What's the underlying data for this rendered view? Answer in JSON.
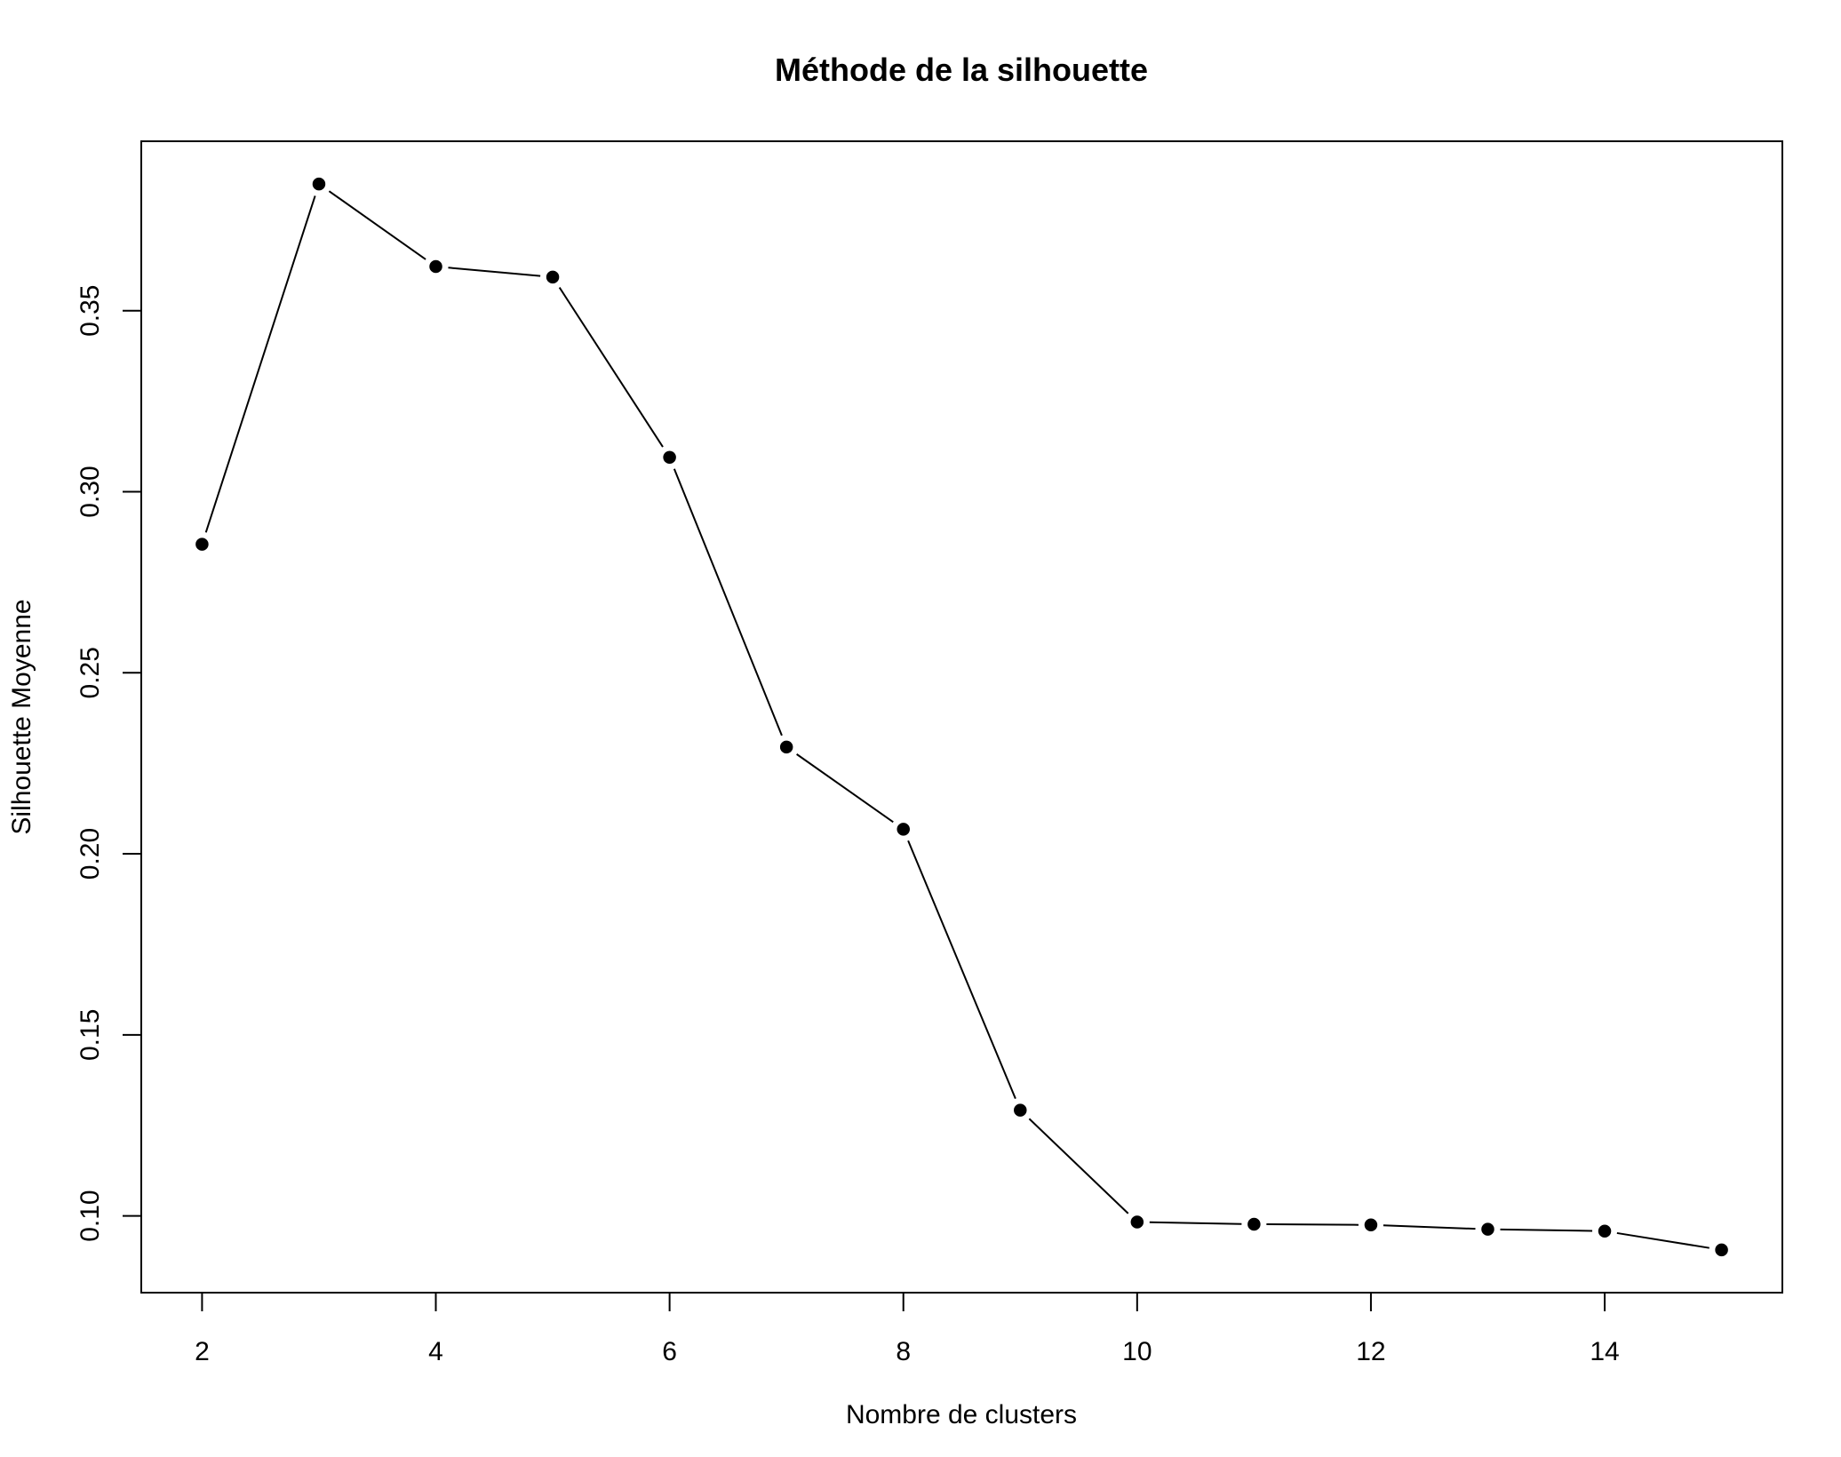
{
  "chart_data": {
    "type": "line",
    "title": "Méthode de la silhouette",
    "xlabel": "Nombre de clusters",
    "ylabel": "Silhouette Moyenne",
    "x": [
      2,
      3,
      4,
      5,
      6,
      7,
      8,
      9,
      10,
      11,
      12,
      13,
      14,
      15
    ],
    "series": [
      {
        "values": [
          0.2855,
          0.385,
          0.3622,
          0.3593,
          0.3095,
          0.2295,
          0.2068,
          0.1292,
          0.0983,
          0.0977,
          0.0975,
          0.0963,
          0.0958,
          0.0906
        ],
        "line_style": "solid with points",
        "marker": "filled-circle",
        "color": "#000000"
      }
    ],
    "xticks": [
      2,
      4,
      6,
      8,
      10,
      12,
      14
    ],
    "xtick_labels": [
      "2",
      "4",
      "6",
      "8",
      "10",
      "12",
      "14"
    ],
    "yticks": [
      0.1,
      0.15,
      0.2,
      0.25,
      0.3,
      0.35
    ],
    "ytick_labels": [
      "0.10",
      "0.15",
      "0.20",
      "0.25",
      "0.30",
      "0.35"
    ],
    "xlim": [
      1.48,
      15.52
    ],
    "ylim": [
      0.0788,
      0.3968
    ],
    "grid": false,
    "legend": "none",
    "colors": {
      "background": "#ffffff",
      "ink": "#000000"
    }
  }
}
